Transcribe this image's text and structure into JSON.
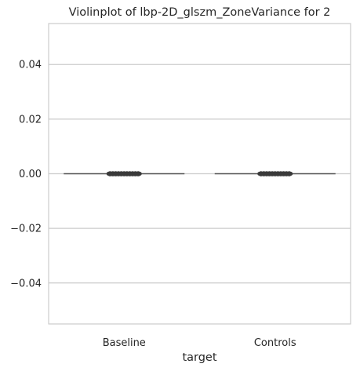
{
  "chart_data": {
    "type": "violin",
    "title": "Violinplot of lbp-2D_glszm_ZoneVariance for 2",
    "xlabel": "target",
    "ylabel": "",
    "categories": [
      "Baseline",
      "Controls"
    ],
    "ylim": [
      -0.055,
      0.055
    ],
    "yticks": [
      -0.04,
      -0.02,
      0.0,
      0.02,
      0.04
    ],
    "ytick_labels": [
      "−0.04",
      "−0.02",
      "0.00",
      "0.02",
      "0.04"
    ],
    "series": [
      {
        "category": "Baseline",
        "values": [
          0,
          0,
          0,
          0,
          0,
          0,
          0,
          0,
          0,
          0,
          0
        ]
      },
      {
        "category": "Controls",
        "values": [
          0,
          0,
          0,
          0,
          0,
          0,
          0,
          0,
          0,
          0,
          0
        ]
      }
    ],
    "grid": "y",
    "colors": {
      "line": "#555555",
      "points": "#3a3a3a",
      "grid": "#cccccc",
      "frame": "#cccccc"
    }
  }
}
